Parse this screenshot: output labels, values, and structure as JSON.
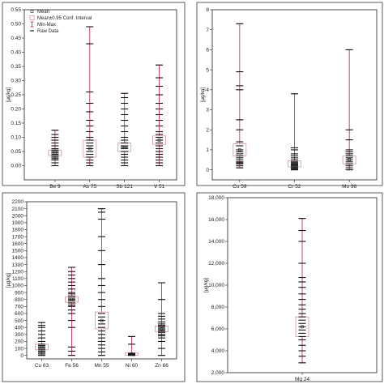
{
  "legend": {
    "entries": [
      "Mean",
      "Mean±0.95 Conf. Interval",
      "Min-Max",
      "Raw Data"
    ]
  },
  "chart_data": [
    {
      "type": "box",
      "ylabel": "[µg/kg]",
      "ylim": [
        -0.05,
        0.55
      ],
      "yticks": [
        0.0,
        0.05,
        0.1,
        0.15,
        0.2,
        0.25,
        0.3,
        0.35,
        0.4,
        0.45,
        0.5,
        0.55
      ],
      "ytick_labels": [
        "0.00",
        "0.05",
        "0.10",
        "0.15",
        "0.20",
        "0.25",
        "0.30",
        "0.35",
        "0.40",
        "0.45",
        "0.50",
        "0.55"
      ],
      "categories": [
        "Be 9",
        "As 75",
        "Sb 121",
        "V 51"
      ],
      "series": [
        {
          "min": 0.0,
          "max": 0.125,
          "mean": 0.045,
          "ci": [
            0.035,
            0.055
          ],
          "raw": [
            0.0,
            0.01,
            0.02,
            0.025,
            0.03,
            0.035,
            0.04,
            0.045,
            0.05,
            0.055,
            0.06,
            0.07,
            0.08,
            0.09,
            0.1,
            0.11,
            0.125
          ]
        },
        {
          "min": 0.0,
          "max": 0.49,
          "mean": 0.06,
          "ci": [
            0.03,
            0.09
          ],
          "raw": [
            0.0,
            0.01,
            0.02,
            0.03,
            0.04,
            0.05,
            0.06,
            0.07,
            0.08,
            0.09,
            0.1,
            0.12,
            0.14,
            0.16,
            0.19,
            0.22,
            0.26,
            0.43,
            0.49
          ]
        },
        {
          "min": 0.0,
          "max": 0.255,
          "mean": 0.065,
          "ci": [
            0.05,
            0.08
          ],
          "raw": [
            0.0,
            0.01,
            0.02,
            0.03,
            0.04,
            0.05,
            0.06,
            0.065,
            0.07,
            0.08,
            0.09,
            0.1,
            0.12,
            0.14,
            0.16,
            0.18,
            0.2,
            0.22,
            0.24,
            0.255
          ]
        },
        {
          "min": 0.0,
          "max": 0.355,
          "mean": 0.09,
          "ci": [
            0.075,
            0.105
          ],
          "raw": [
            0.0,
            0.01,
            0.02,
            0.03,
            0.04,
            0.05,
            0.06,
            0.07,
            0.08,
            0.09,
            0.1,
            0.11,
            0.12,
            0.14,
            0.16,
            0.18,
            0.2,
            0.22,
            0.25,
            0.28,
            0.31,
            0.355
          ]
        }
      ]
    },
    {
      "type": "box",
      "ylabel": "[µg/kg]",
      "ylim": [
        -0.5,
        8
      ],
      "yticks": [
        0,
        1,
        2,
        3,
        4,
        5,
        6,
        7,
        8
      ],
      "ytick_labels": [
        "0",
        "1",
        "2",
        "3",
        "4",
        "5",
        "6",
        "7",
        "8"
      ],
      "categories": [
        "Cu 59",
        "Cr 52",
        "Mo 98"
      ],
      "series": [
        {
          "min": 0.1,
          "max": 7.3,
          "mean": 1.0,
          "ci": [
            0.7,
            1.3
          ],
          "raw": [
            0.1,
            0.2,
            0.3,
            0.35,
            0.4,
            0.5,
            0.6,
            0.7,
            0.8,
            0.9,
            1.0,
            1.2,
            1.4,
            2.0,
            2.5,
            4.0,
            4.2,
            4.9,
            7.3
          ]
        },
        {
          "min": 0.0,
          "max": 3.8,
          "mean": 0.3,
          "ci": [
            0.15,
            0.45
          ],
          "raw": [
            0.0,
            0.05,
            0.1,
            0.15,
            0.2,
            0.25,
            0.3,
            0.35,
            0.4,
            0.5,
            0.6,
            0.7,
            0.8,
            1.0,
            1.1,
            3.8
          ]
        },
        {
          "min": 0.0,
          "max": 6.0,
          "mean": 0.5,
          "ci": [
            0.3,
            0.7
          ],
          "raw": [
            0.0,
            0.1,
            0.2,
            0.3,
            0.4,
            0.5,
            0.6,
            0.7,
            0.8,
            0.9,
            1.0,
            1.5,
            2.0,
            6.0
          ]
        }
      ]
    },
    {
      "type": "box",
      "ylabel": "[µg/kg]",
      "ylim": [
        -50,
        2200
      ],
      "yticks": [
        0,
        100,
        200,
        300,
        400,
        500,
        600,
        700,
        800,
        900,
        1000,
        1100,
        1200,
        1300,
        1400,
        1500,
        1600,
        1700,
        1800,
        1900,
        2000,
        2100,
        2200
      ],
      "ytick_labels": [
        "0",
        "100",
        "200",
        "300",
        "400",
        "500",
        "600",
        "700",
        "800",
        "900",
        "1000",
        "1100",
        "1200",
        "1300",
        "1400",
        "1500",
        "1600",
        "1700",
        "1800",
        "1900",
        "2000",
        "2100",
        "2200"
      ],
      "categories": [
        "Cu 63",
        "Fe 56",
        "Mn 55",
        "Ni 60",
        "Zn 66"
      ],
      "series": [
        {
          "min": 0,
          "max": 470,
          "mean": 120,
          "ci": [
            80,
            160
          ],
          "raw": [
            0,
            20,
            40,
            60,
            80,
            100,
            120,
            140,
            160,
            200,
            250,
            300,
            350,
            400,
            430,
            470
          ]
        },
        {
          "min": 0,
          "max": 1260,
          "mean": 800,
          "ci": [
            760,
            840
          ],
          "raw": [
            0,
            60,
            120,
            400,
            500,
            600,
            650,
            700,
            720,
            750,
            780,
            800,
            820,
            850,
            880,
            900,
            950,
            1000,
            1050,
            1100,
            1150,
            1200,
            1260
          ]
        },
        {
          "min": 0,
          "max": 2100,
          "mean": 500,
          "ci": [
            380,
            620
          ],
          "raw": [
            0,
            50,
            100,
            150,
            200,
            250,
            300,
            350,
            400,
            450,
            500,
            550,
            600,
            700,
            800,
            900,
            1000,
            1100,
            1300,
            1500,
            1700,
            1950,
            2050,
            2100
          ]
        },
        {
          "min": 0,
          "max": 270,
          "mean": 20,
          "ci": [
            5,
            35
          ],
          "raw": [
            0,
            5,
            10,
            15,
            20,
            25,
            30,
            160,
            270
          ]
        },
        {
          "min": 0,
          "max": 1040,
          "mean": 380,
          "ci": [
            340,
            420
          ],
          "raw": [
            0,
            100,
            200,
            250,
            280,
            300,
            330,
            350,
            370,
            390,
            410,
            430,
            450,
            480,
            520,
            560,
            600,
            800,
            1040
          ]
        }
      ]
    },
    {
      "type": "box",
      "ylabel": "[µg/kg]",
      "ylim": [
        2000,
        18000
      ],
      "yticks": [
        2000,
        4000,
        6000,
        8000,
        10000,
        12000,
        14000,
        16000,
        18000
      ],
      "ytick_labels": [
        "2,000",
        "4,000",
        "6,000",
        "8,000",
        "10,000",
        "12,000",
        "14,000",
        "16,000",
        "18,000"
      ],
      "categories": [
        "Mg 24"
      ],
      "series": [
        {
          "min": 2900,
          "max": 16100,
          "mean": 6200,
          "ci": [
            5300,
            7100
          ],
          "raw": [
            2900,
            3500,
            4000,
            4500,
            5000,
            5300,
            5600,
            5900,
            6200,
            6500,
            6800,
            7100,
            7400,
            7800,
            8200,
            8700,
            9200,
            9800,
            10300,
            10700,
            12000,
            14000,
            15000,
            16100
          ]
        }
      ]
    }
  ]
}
